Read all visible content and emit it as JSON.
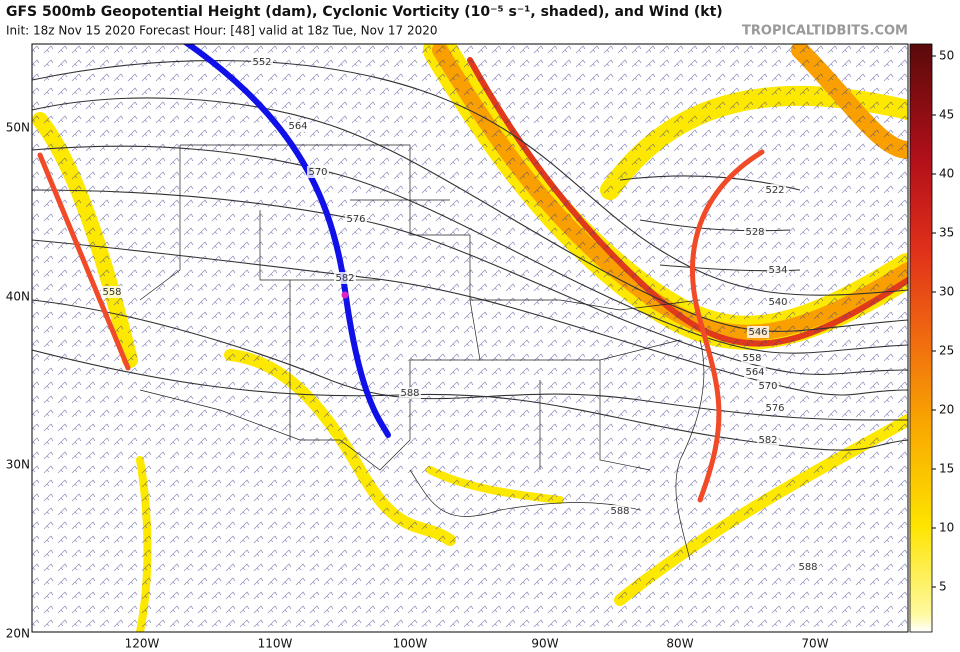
{
  "header": {
    "title": "GFS 500mb Geopotential Height (dam), Cyclonic Vorticity (10⁻⁵ s⁻¹, shaded), and Wind (kt)",
    "subtitle": "Init: 18z Nov 15 2020   Forecast Hour: [48]   valid at 18z Tue, Nov 17 2020",
    "watermark": "TROPICALTIDBITS.COM"
  },
  "map": {
    "lat_labels": [
      "50N",
      "40N",
      "30N",
      "20N"
    ],
    "lon_labels": [
      "120W",
      "110W",
      "100W",
      "90W",
      "80W",
      "70W"
    ],
    "contour_labels": [
      "552",
      "564",
      "570",
      "576",
      "582",
      "558",
      "588",
      "588",
      "588",
      "522",
      "528",
      "534",
      "540",
      "546",
      "558",
      "564",
      "570",
      "576",
      "582"
    ]
  },
  "colorbar": {
    "ticks": [
      5,
      10,
      15,
      20,
      25,
      30,
      35,
      40,
      45,
      50
    ]
  }
}
